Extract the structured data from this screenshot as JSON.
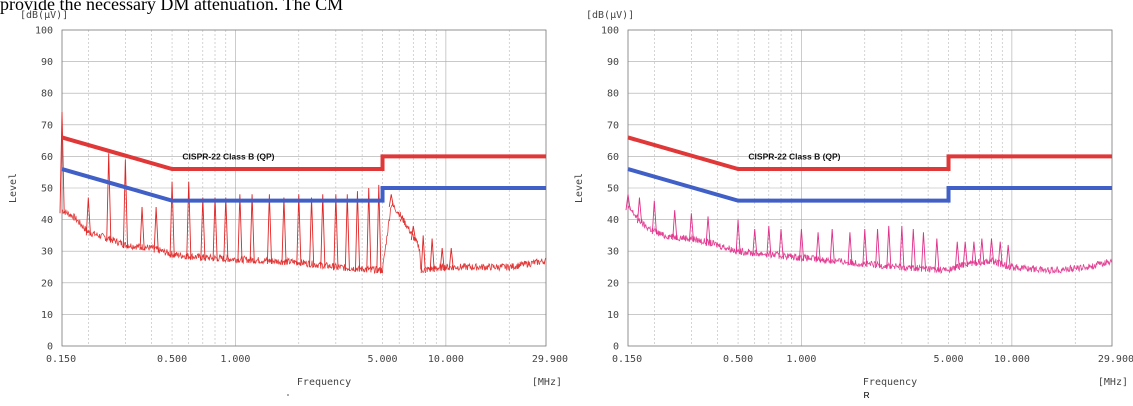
{
  "top_text": "provide the necessary DM attenuation. The CM",
  "chart_data": [
    {
      "type": "line",
      "ylabel": "Level",
      "yunit": "[dB(μV)]",
      "xlabel": "Frequency",
      "xunit": "[MHz]",
      "xscale": "log",
      "xlim": [
        0.15,
        29.9
      ],
      "ylim": [
        0,
        100
      ],
      "yticks": [
        0,
        10,
        20,
        30,
        40,
        50,
        60,
        70,
        80,
        90,
        100
      ],
      "xticks": [
        {
          "value": 0.15,
          "label": "0.150"
        },
        {
          "value": 0.5,
          "label": "0.500"
        },
        {
          "value": 1.0,
          "label": "1.000"
        },
        {
          "value": 5.0,
          "label": "5.000"
        },
        {
          "value": 10.0,
          "label": "10.000"
        },
        {
          "value": 29.9,
          "label": "29.900"
        }
      ],
      "grid": true,
      "annotation": {
        "text": "CISPR-22 Class B (QP)",
        "x": 0.56,
        "y": 59
      },
      "series": [
        {
          "role": "limit-qp",
          "color": "#e03838",
          "x": [
            0.15,
            0.5,
            5.0,
            5.0,
            29.9
          ],
          "y": [
            66,
            56,
            56,
            60,
            60
          ]
        },
        {
          "role": "limit-avg",
          "color": "#4060c8",
          "x": [
            0.15,
            0.5,
            5.0,
            5.0,
            29.9
          ],
          "y": [
            56,
            46,
            46,
            50,
            50
          ]
        },
        {
          "role": "measured",
          "color": "#e02525",
          "base": [
            [
              0.15,
              43
            ],
            [
              0.17,
              41
            ],
            [
              0.2,
              36
            ],
            [
              0.25,
              34
            ],
            [
              0.3,
              32
            ],
            [
              0.4,
              31
            ],
            [
              0.5,
              29
            ],
            [
              0.7,
              28
            ],
            [
              1.0,
              27.5
            ],
            [
              2.0,
              26.5
            ],
            [
              3.0,
              25
            ],
            [
              5.0,
              24
            ],
            [
              5.5,
              45
            ],
            [
              6.0,
              42
            ],
            [
              6.8,
              36
            ],
            [
              7.5,
              31
            ],
            [
              7.6,
              24
            ],
            [
              10.0,
              25
            ],
            [
              15.0,
              25
            ],
            [
              20.0,
              25
            ],
            [
              29.9,
              27
            ]
          ],
          "peaks": [
            [
              0.15,
              74
            ],
            [
              0.2,
              47
            ],
            [
              0.25,
              61
            ],
            [
              0.3,
              59
            ],
            [
              0.36,
              44
            ],
            [
              0.42,
              44
            ],
            [
              0.5,
              52
            ],
            [
              0.6,
              52
            ],
            [
              0.7,
              47
            ],
            [
              0.8,
              47
            ],
            [
              0.9,
              47
            ],
            [
              1.05,
              48
            ],
            [
              1.2,
              48
            ],
            [
              1.45,
              48
            ],
            [
              1.7,
              47
            ],
            [
              2.0,
              48
            ],
            [
              2.3,
              47
            ],
            [
              2.6,
              48
            ],
            [
              3.0,
              48
            ],
            [
              3.4,
              48
            ],
            [
              3.8,
              49
            ],
            [
              4.3,
              50
            ],
            [
              4.8,
              51
            ],
            [
              5.5,
              48
            ],
            [
              6.2,
              41
            ],
            [
              7.0,
              38
            ],
            [
              7.8,
              35
            ],
            [
              8.6,
              34
            ],
            [
              9.6,
              31
            ],
            [
              10.6,
              31
            ]
          ]
        }
      ]
    },
    {
      "type": "line",
      "ylabel": "Level",
      "yunit": "[dB(μV)]",
      "xlabel": "Frequency",
      "xunit": "[MHz]",
      "xscale": "log",
      "xlim": [
        0.15,
        29.9
      ],
      "ylim": [
        0,
        100
      ],
      "yticks": [
        0,
        10,
        20,
        30,
        40,
        50,
        60,
        70,
        80,
        90,
        100
      ],
      "xticks": [
        {
          "value": 0.15,
          "label": "0.150"
        },
        {
          "value": 0.5,
          "label": "0.500"
        },
        {
          "value": 1.0,
          "label": "1.000"
        },
        {
          "value": 5.0,
          "label": "5.000"
        },
        {
          "value": 10.0,
          "label": "10.000"
        },
        {
          "value": 29.9,
          "label": "29.900"
        }
      ],
      "grid": true,
      "annotation": {
        "text": "CISPR-22 Class B (QP)",
        "x": 0.56,
        "y": 59
      },
      "series": [
        {
          "role": "limit-qp",
          "color": "#e03838",
          "x": [
            0.15,
            0.5,
            5.0,
            5.0,
            29.9
          ],
          "y": [
            66,
            56,
            56,
            60,
            60
          ]
        },
        {
          "role": "limit-avg",
          "color": "#4060c8",
          "x": [
            0.15,
            0.5,
            5.0,
            5.0,
            29.9
          ],
          "y": [
            56,
            46,
            46,
            50,
            50
          ]
        },
        {
          "role": "measured",
          "color": "#e0308a",
          "base": [
            [
              0.15,
              44
            ],
            [
              0.18,
              38
            ],
            [
              0.22,
              35
            ],
            [
              0.3,
              34
            ],
            [
              0.4,
              32
            ],
            [
              0.5,
              30
            ],
            [
              0.7,
              29
            ],
            [
              1.0,
              28
            ],
            [
              2.0,
              26
            ],
            [
              3.0,
              25
            ],
            [
              5.0,
              24
            ],
            [
              6.0,
              26
            ],
            [
              8.0,
              27
            ],
            [
              10.0,
              25
            ],
            [
              15.0,
              24
            ],
            [
              20.0,
              24.5
            ],
            [
              25.0,
              25.5
            ],
            [
              29.9,
              27
            ]
          ],
          "peaks": [
            [
              0.15,
              48
            ],
            [
              0.17,
              47
            ],
            [
              0.2,
              46
            ],
            [
              0.25,
              43
            ],
            [
              0.3,
              42
            ],
            [
              0.36,
              41
            ],
            [
              0.5,
              40
            ],
            [
              0.6,
              37
            ],
            [
              0.7,
              38
            ],
            [
              0.8,
              37
            ],
            [
              1.0,
              37
            ],
            [
              1.2,
              36
            ],
            [
              1.4,
              37
            ],
            [
              1.7,
              36
            ],
            [
              2.0,
              37
            ],
            [
              2.3,
              37
            ],
            [
              2.6,
              38
            ],
            [
              3.0,
              38
            ],
            [
              3.4,
              37
            ],
            [
              3.8,
              36
            ],
            [
              4.4,
              34
            ],
            [
              5.5,
              33
            ],
            [
              6.0,
              33
            ],
            [
              6.6,
              33
            ],
            [
              7.2,
              34
            ],
            [
              8.0,
              34
            ],
            [
              8.8,
              33
            ],
            [
              9.6,
              32
            ]
          ]
        }
      ]
    }
  ]
}
